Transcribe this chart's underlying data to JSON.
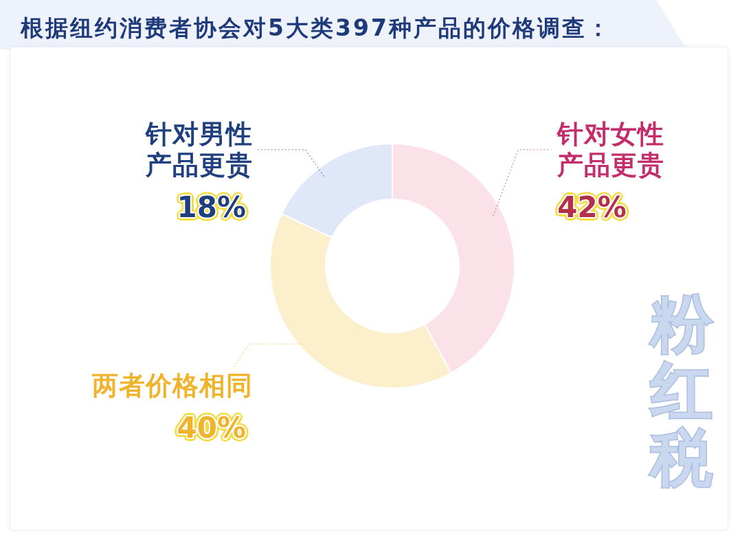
{
  "chart_data": {
    "type": "donut",
    "title": "根据纽约消费者协会对5大类397种产品的价格调查：",
    "categories": [
      "针对女性产品更贵",
      "两者价格相同",
      "针对男性产品更贵"
    ],
    "values": [
      42,
      40,
      18
    ],
    "colors": [
      "#fbe1e8",
      "#fcefcc",
      "#dfe7f8"
    ],
    "value_labels": [
      "42%",
      "40%",
      "18%"
    ],
    "annotations": [
      "粉红税"
    ]
  }
}
